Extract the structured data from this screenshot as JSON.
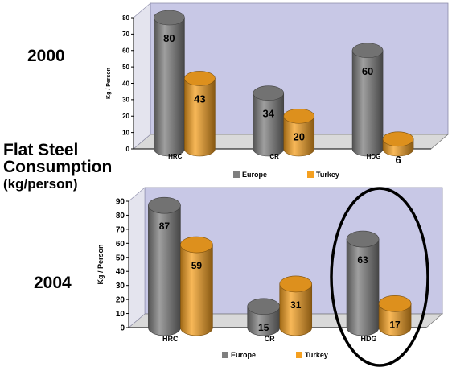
{
  "labels": {
    "year_top": "2000",
    "year_bottom": "2004",
    "title_line1": "Flat Steel",
    "title_line2": "Consumption",
    "title_line3": "(kg/person)"
  },
  "colors": {
    "europe": "#7f7f7f",
    "turkey": "#f5a020",
    "plot_bg": "#c8c8e6",
    "annotation": "#000000"
  },
  "annotation": {
    "shape": "ellipse",
    "target": "HDG 2004",
    "description_visible": false
  },
  "chart_data": [
    {
      "type": "bar",
      "style": "3d-cylinder",
      "title": "",
      "categories": [
        "HRC",
        "CR",
        "HDG"
      ],
      "series": [
        {
          "name": "Europe",
          "values": [
            80,
            34,
            60
          ]
        },
        {
          "name": "Turkey",
          "values": [
            43,
            20,
            6
          ]
        }
      ],
      "xlabel": "",
      "ylabel": "Kg / Person",
      "ylim": [
        0,
        80
      ],
      "yticks": [
        0,
        10,
        20,
        30,
        40,
        50,
        60,
        70,
        80
      ],
      "grid": false,
      "legend": "bottom"
    },
    {
      "type": "bar",
      "style": "3d-cylinder",
      "title": "",
      "categories": [
        "HRC",
        "CR",
        "HDG"
      ],
      "series": [
        {
          "name": "Europe",
          "values": [
            87,
            15,
            63
          ]
        },
        {
          "name": "Turkey",
          "values": [
            59,
            31,
            17
          ]
        }
      ],
      "xlabel": "",
      "ylabel": "Kg / Person",
      "ylim": [
        0,
        90
      ],
      "yticks": [
        0,
        10,
        20,
        30,
        40,
        50,
        60,
        70,
        80,
        90
      ],
      "grid": false,
      "legend": "bottom"
    }
  ]
}
